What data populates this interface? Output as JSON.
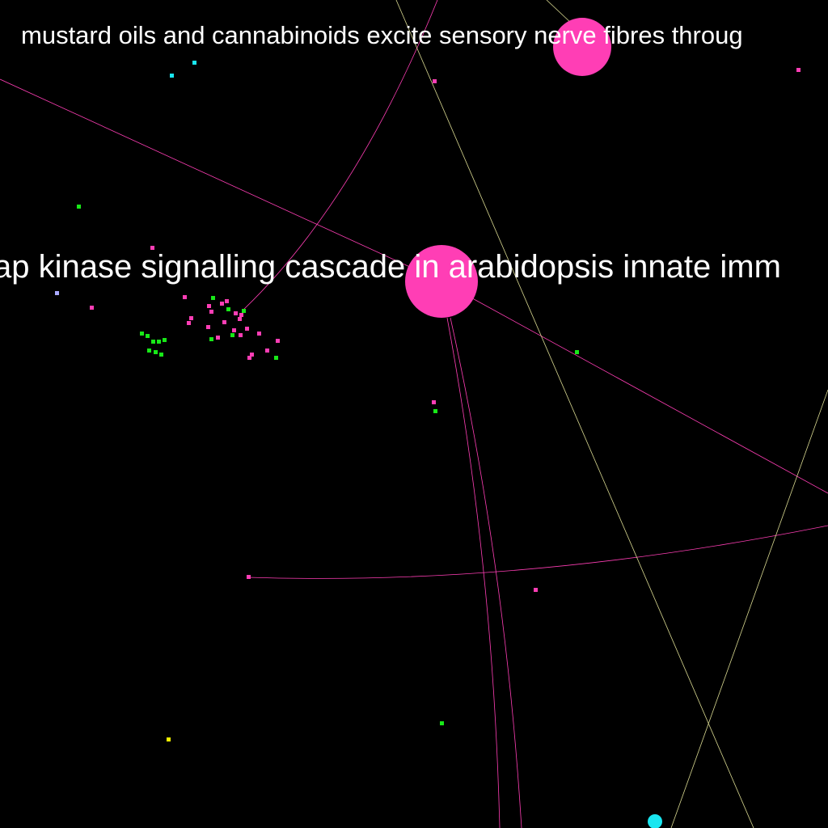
{
  "labels": {
    "top_title": "mustard oils and cannabinoids excite sensory nerve fibres throug",
    "center_title": "ap kinase signalling cascade in arabidopsis innate imm"
  },
  "colors": {
    "background": "#000000",
    "pink": "#ff3eb5",
    "green": "#18e818",
    "cyan": "#19e6f0",
    "yellow": "#f0f000",
    "lavender": "#a9a9ff",
    "pale_yellow_edge": "#d8d890"
  }
}
